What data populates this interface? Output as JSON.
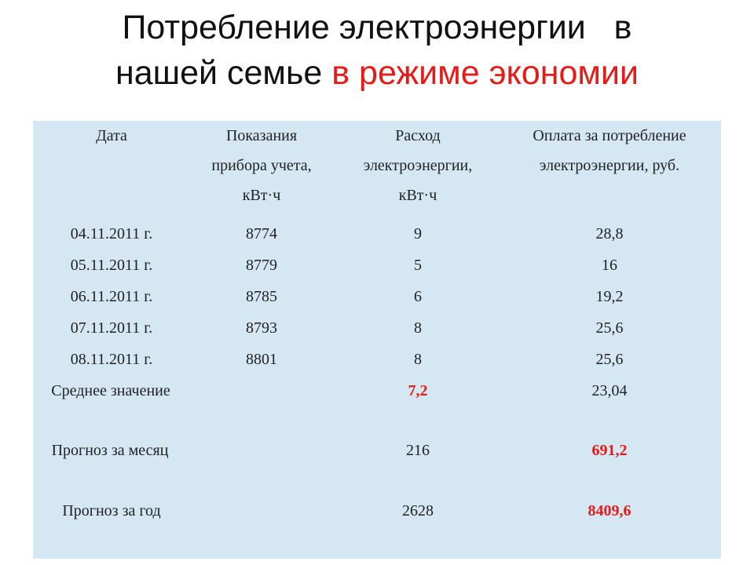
{
  "title": {
    "line1": "Потребление электроэнергии   в",
    "line2_prefix": "нашей семье ",
    "line2_highlight": "в режиме экономии"
  },
  "table": {
    "headers": {
      "date": "Дата",
      "meter": [
        "Показания",
        "прибора учета,",
        "кВт·ч"
      ],
      "usage": [
        "Расход",
        "электроэнергии,",
        "кВт·ч"
      ],
      "payment": [
        "Оплата за потребление",
        "электроэнергии, руб."
      ]
    },
    "rows": [
      {
        "date": "04.11.2011 г.",
        "meter": "8774",
        "usage": "9",
        "payment": "28,8"
      },
      {
        "date": "05.11.2011 г.",
        "meter": "8779",
        "usage": "5",
        "payment": "16"
      },
      {
        "date": "06.11.2011 г.",
        "meter": "8785",
        "usage": "6",
        "payment": "19,2"
      },
      {
        "date": "07.11.2011 г.",
        "meter": "8793",
        "usage": "8",
        "payment": "25,6"
      },
      {
        "date": "08.11.2011 г.",
        "meter": "8801",
        "usage": "8",
        "payment": "25,6"
      }
    ],
    "average": {
      "label": "Среднее значение",
      "usage": "7,2",
      "payment": "23,04"
    },
    "forecast_month": {
      "label": "Прогноз за месяц",
      "usage": "216",
      "payment": "691,2"
    },
    "forecast_year": {
      "label": "Прогноз за год",
      "usage": "2628",
      "payment": "8409,6"
    },
    "highlight_color": "#e41b17"
  }
}
